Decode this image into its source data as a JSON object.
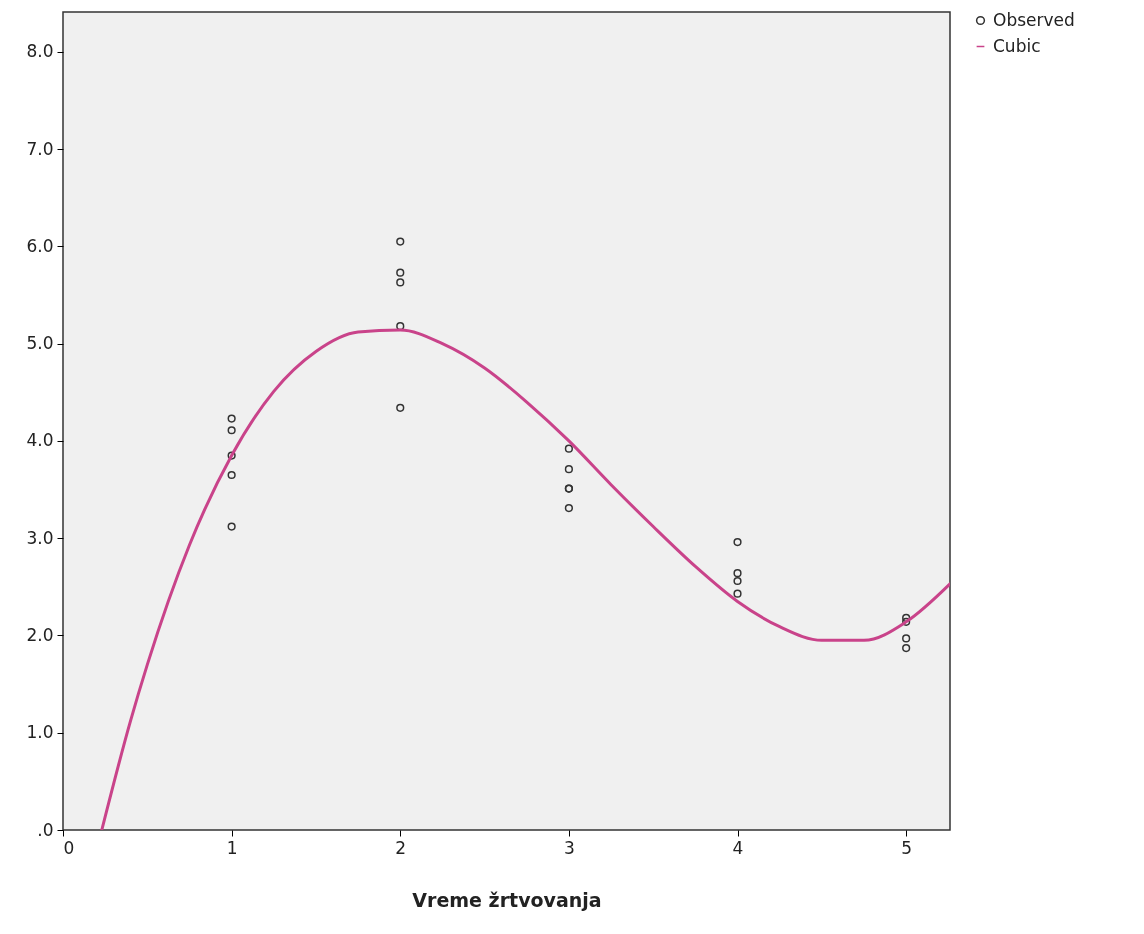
{
  "chart_data": {
    "type": "scatter",
    "xlabel": "Vreme žrtvovanja",
    "xlim": [
      0,
      5.26
    ],
    "xticks": [
      0,
      1,
      2,
      3,
      4,
      5
    ],
    "ylim": [
      0,
      8.41
    ],
    "yticks": [
      {
        "value": 0,
        "label": ".0"
      },
      {
        "value": 1,
        "label": "1.0"
      },
      {
        "value": 2,
        "label": "2.0"
      },
      {
        "value": 3,
        "label": "3.0"
      },
      {
        "value": 4,
        "label": "4.0"
      },
      {
        "value": 5,
        "label": "5.0"
      },
      {
        "value": 6,
        "label": "6.0"
      },
      {
        "value": 7,
        "label": "7.0"
      },
      {
        "value": 8,
        "label": "8.0"
      }
    ],
    "grid": false,
    "legend": "top right",
    "series": [
      {
        "name": "Observed",
        "marker": "circle",
        "color": "#333333",
        "x": [
          1,
          1,
          1,
          1,
          1,
          2,
          2,
          2,
          2,
          2,
          3,
          3,
          3,
          3,
          3,
          4,
          4,
          4,
          4,
          5,
          5,
          5,
          5
        ],
        "values": [
          4.23,
          4.11,
          3.85,
          3.65,
          3.12,
          6.05,
          5.73,
          5.63,
          5.18,
          4.34,
          3.92,
          3.71,
          3.51,
          3.51,
          3.31,
          2.96,
          2.64,
          2.56,
          2.43,
          2.18,
          2.14,
          1.97,
          1.87
        ]
      },
      {
        "name": "Cubic",
        "type": "line",
        "marker": "none",
        "color": "#c9438a",
        "line_style": "solid",
        "x": [
          0.23,
          0.4,
          0.5,
          0.75,
          1,
          1.25,
          1.5,
          1.75,
          2,
          2.25,
          2.5,
          2.75,
          3,
          3.25,
          3.5,
          3.75,
          4,
          4.25,
          4.5,
          4.75,
          5,
          5.26
        ],
        "values": [
          0,
          1.12,
          1.7,
          2.93,
          3.85,
          4.51,
          4.92,
          5.12,
          5.14,
          5,
          4.75,
          4.4,
          4,
          3.55,
          3.12,
          2.71,
          2.35,
          2.09,
          1.95,
          1.95,
          2.14,
          2.53
        ]
      }
    ]
  }
}
